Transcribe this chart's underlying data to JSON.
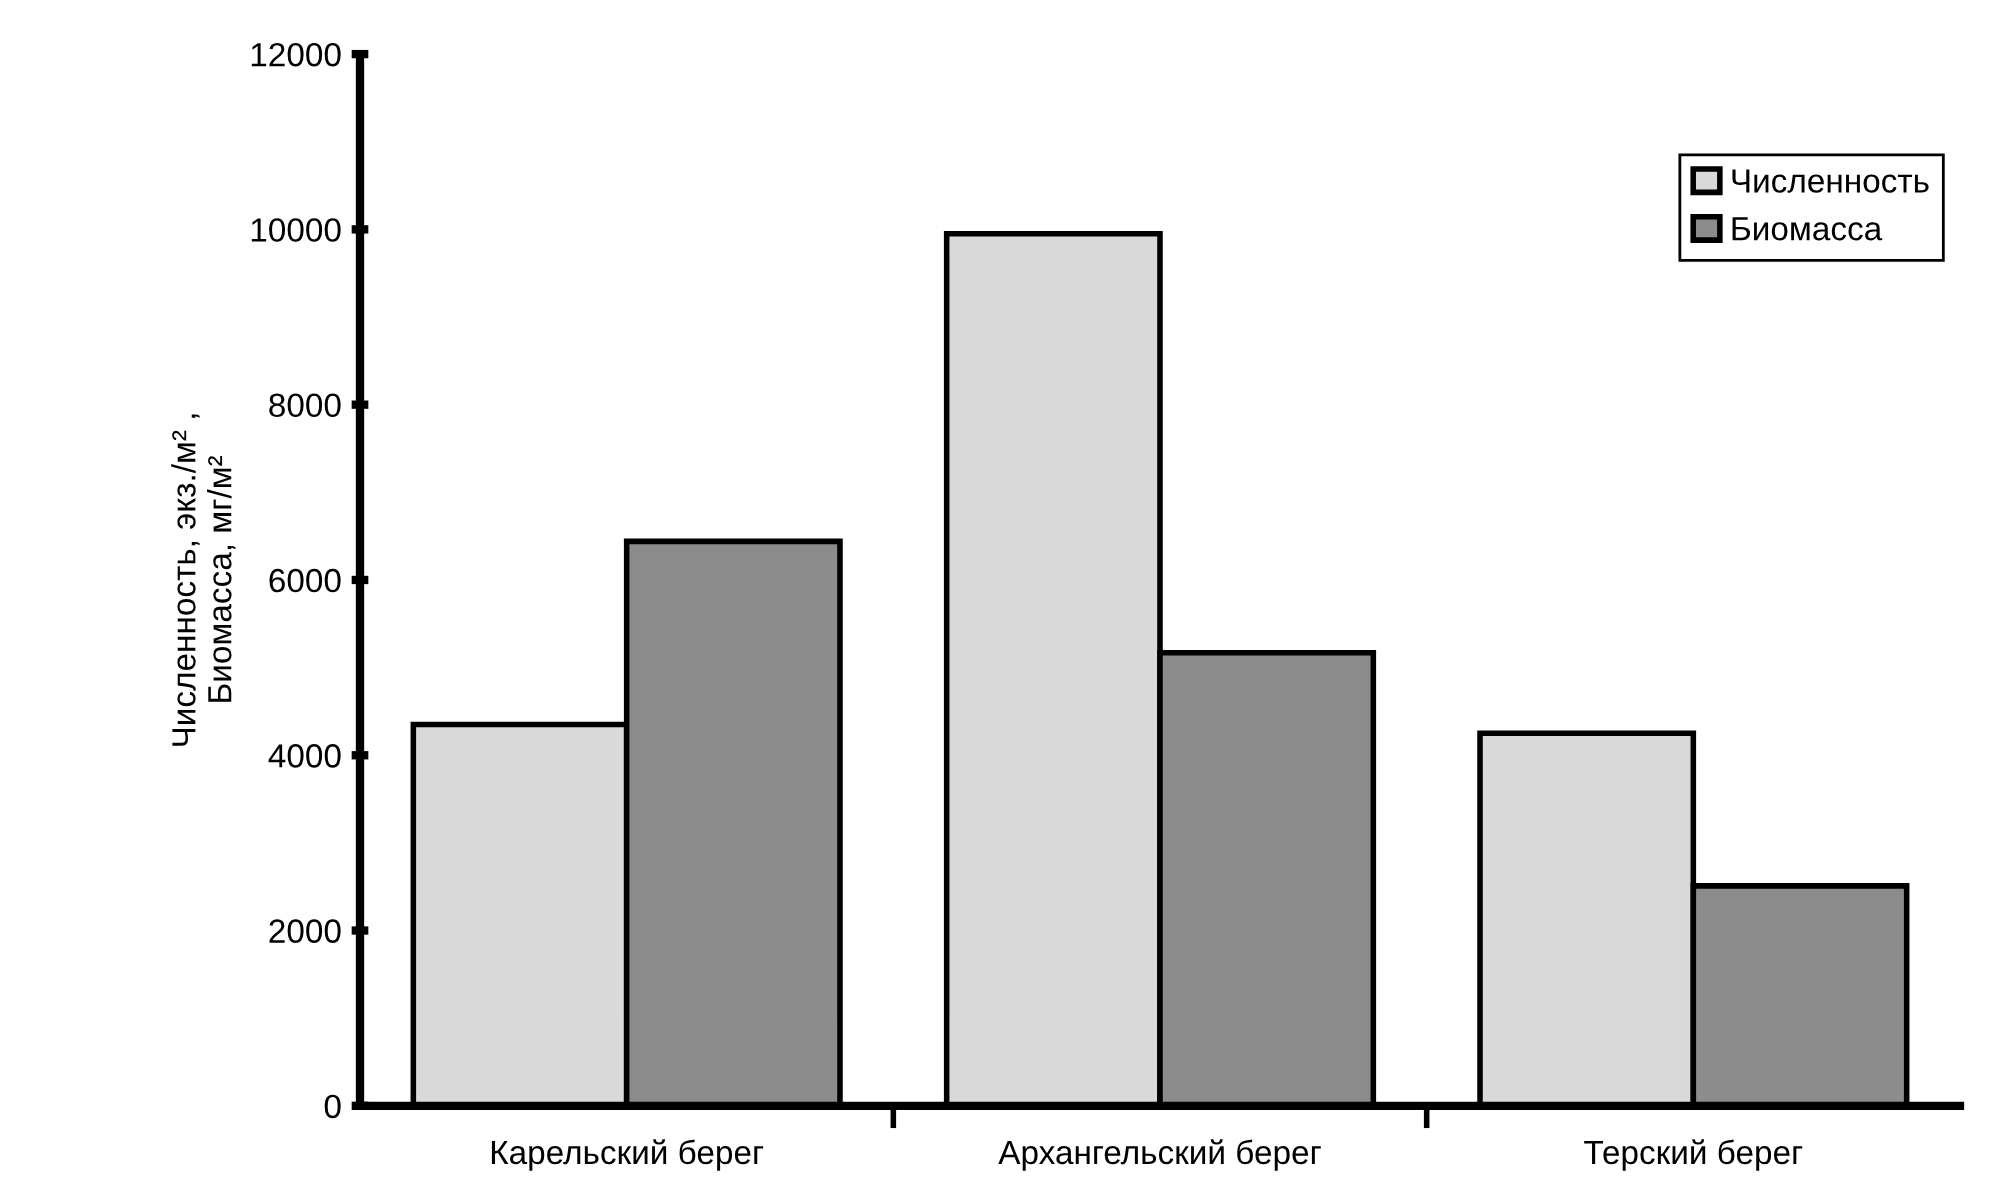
{
  "chart_data": {
    "type": "bar",
    "ylabel": "Численность, экз./м² ,\nБиомасса, мг/м²",
    "categories": [
      "Карельский берег",
      "Архангельский берег",
      "Терский берег"
    ],
    "series": [
      {
        "name": "Численность",
        "color": "#d9d9d9",
        "values": [
          4350,
          9950,
          4250
        ]
      },
      {
        "name": "Биомасса",
        "color": "#8c8c8c",
        "values": [
          6440,
          5170,
          2510
        ]
      }
    ],
    "ylim": [
      0,
      12000
    ],
    "yticks": [
      0,
      2000,
      4000,
      6000,
      8000,
      10000,
      12000
    ],
    "grid": false,
    "legend": "top right"
  }
}
